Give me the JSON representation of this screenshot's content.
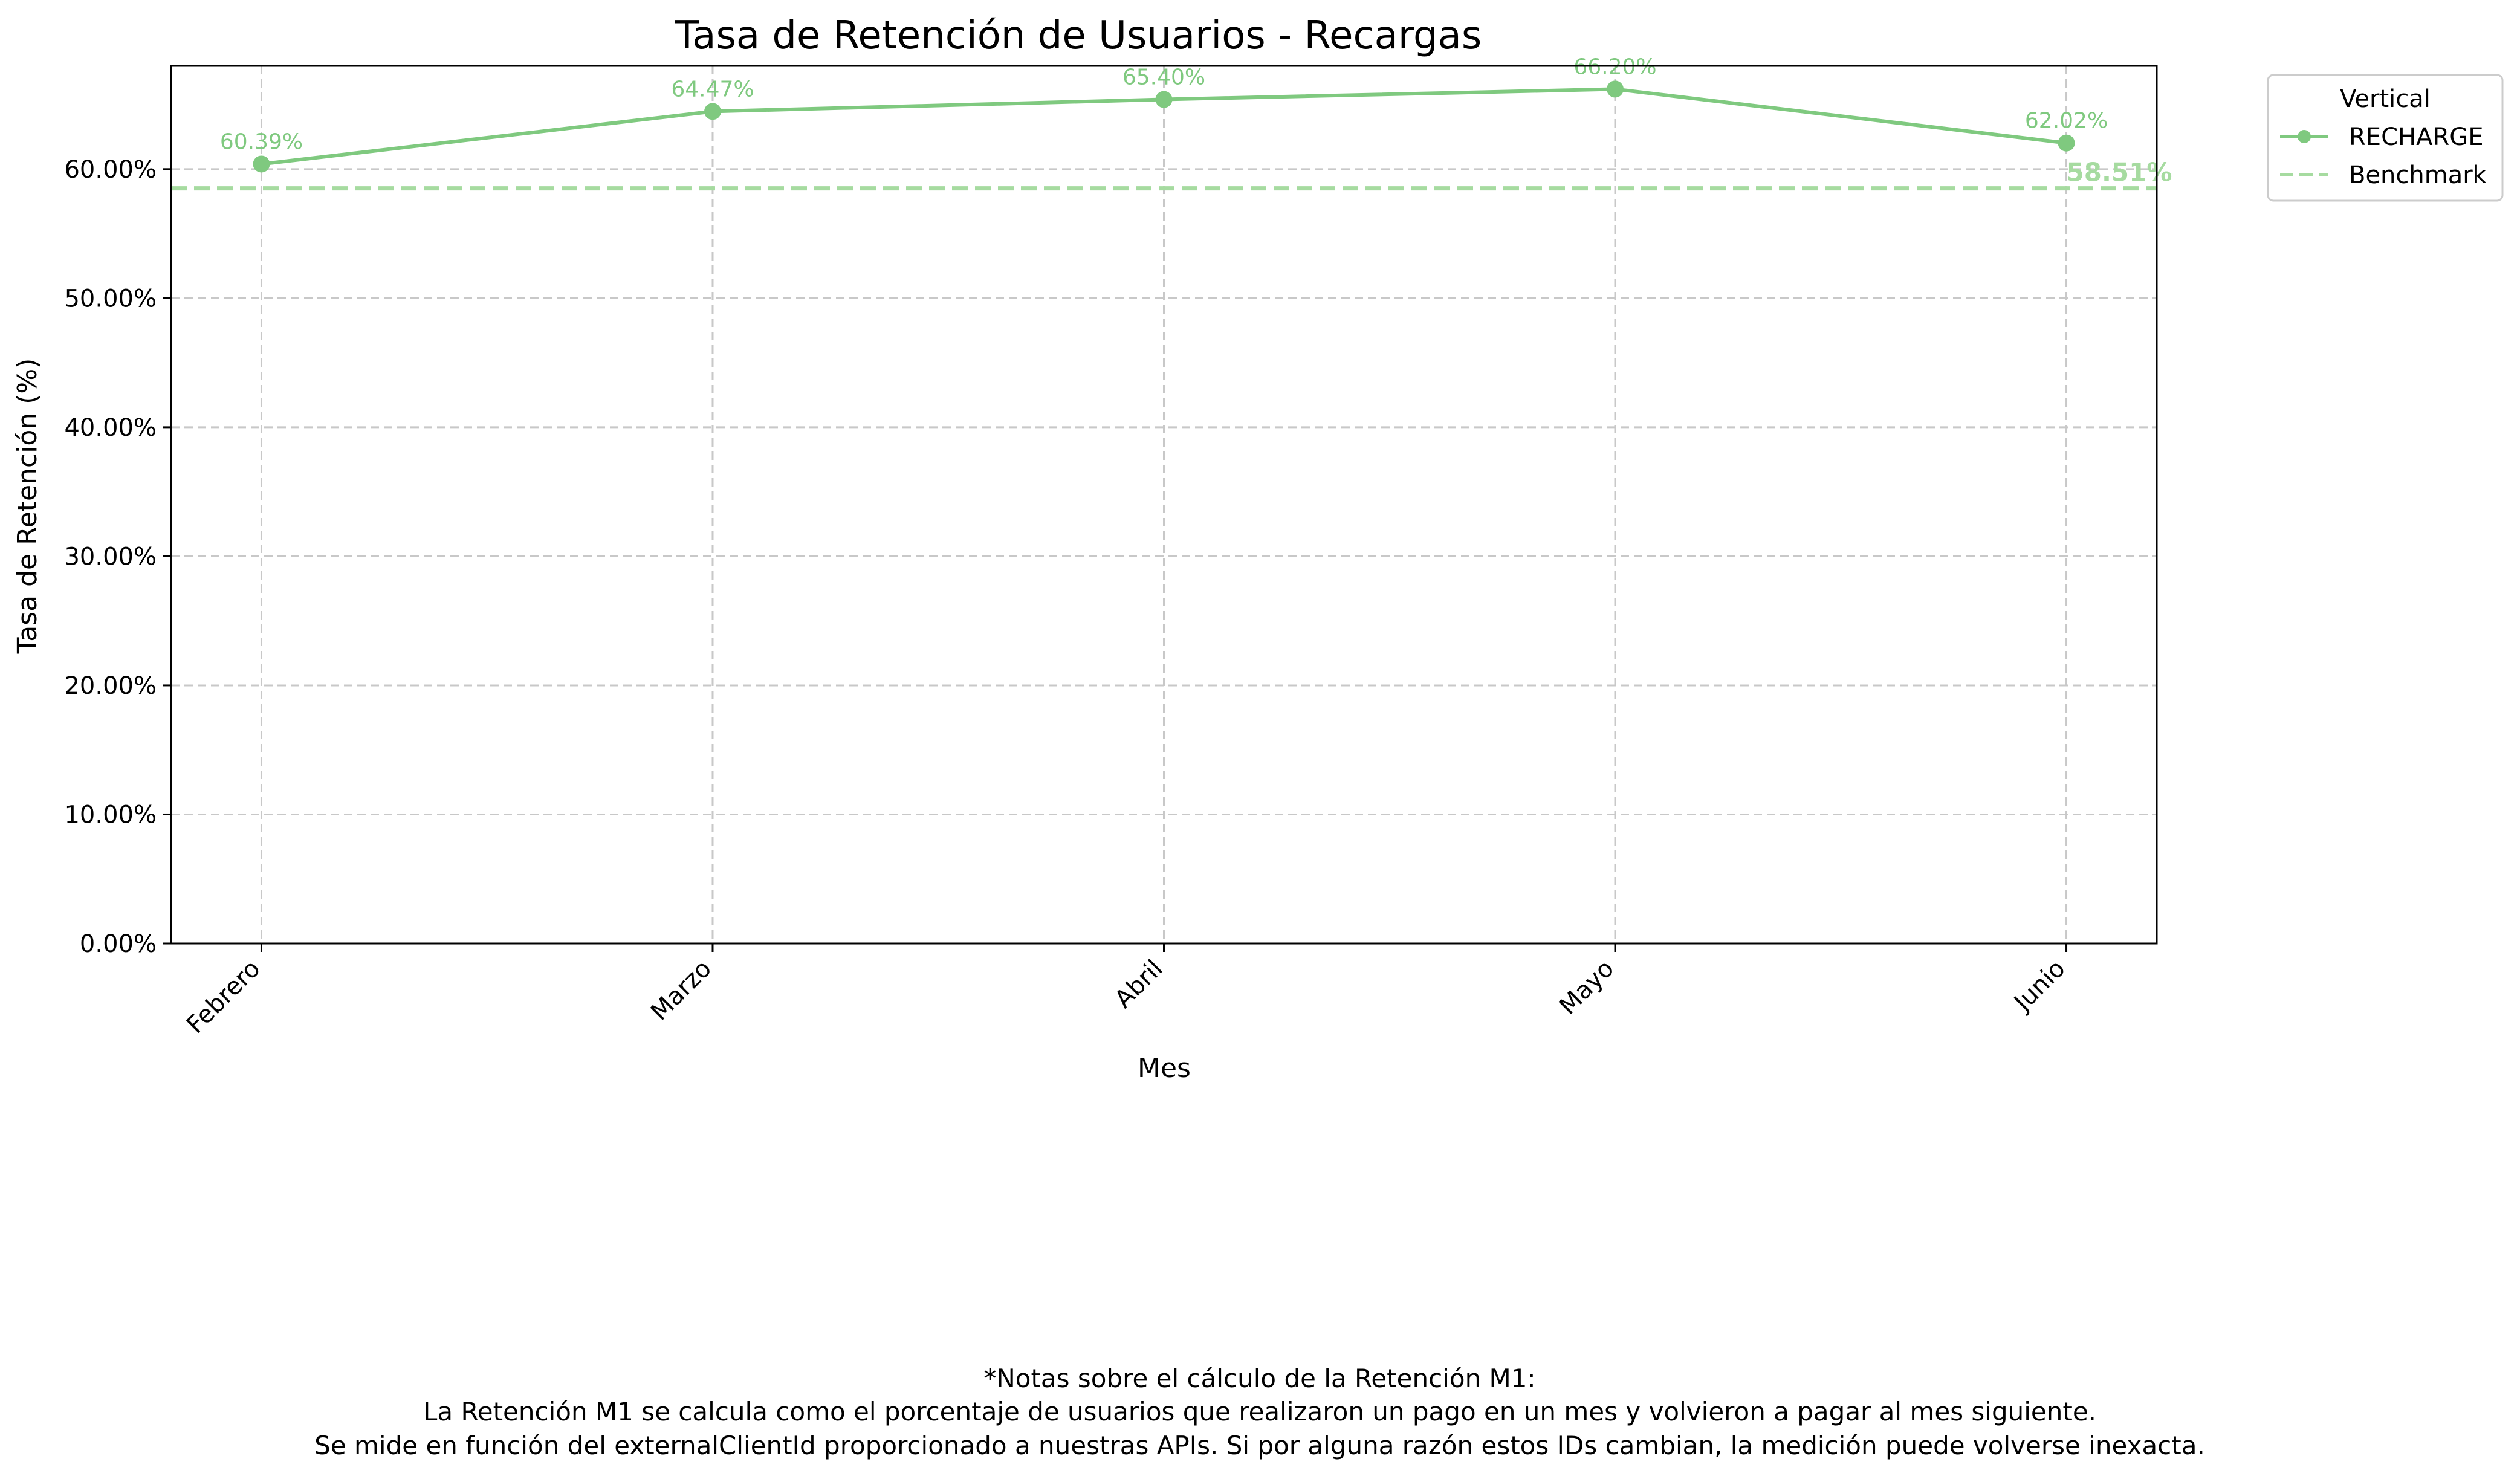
{
  "chart_data": {
    "type": "line",
    "title": "Tasa de Retención de Usuarios - Recargas",
    "xlabel": "Mes",
    "ylabel": "Tasa de Retención (%)",
    "categories": [
      "Febrero",
      "Marzo",
      "Abril",
      "Mayo",
      "Junio"
    ],
    "series": [
      {
        "name": "RECHARGE",
        "values": [
          60.39,
          64.47,
          65.4,
          66.2,
          62.02
        ],
        "labels": [
          "60.39%",
          "64.47%",
          "65.40%",
          "66.20%",
          "62.02%"
        ],
        "color": "#7fc97f"
      }
    ],
    "benchmark": {
      "name": "Benchmark",
      "value": 58.51,
      "label": "58.51%",
      "color": "#a6dba0"
    },
    "ylim": [
      0,
      68
    ],
    "yticks": [
      0,
      10,
      20,
      30,
      40,
      50,
      60
    ],
    "ytick_labels": [
      "0.00%",
      "10.00%",
      "20.00%",
      "30.00%",
      "40.00%",
      "50.00%",
      "60.00%"
    ],
    "grid": true,
    "legend": {
      "title": "Vertical",
      "placement": "upper right outside",
      "entries": [
        "RECHARGE",
        "Benchmark"
      ]
    },
    "footnote": [
      "*Notas sobre el cálculo de la Retención M1:",
      "La Retención M1 se calcula como el porcentaje de usuarios que realizaron un pago en un mes y volvieron a pagar al mes siguiente.",
      "Se mide en función del externalClientId proporcionado a nuestras APIs. Si por alguna razón estos IDs cambian, la medición puede volverse inexacta."
    ]
  }
}
